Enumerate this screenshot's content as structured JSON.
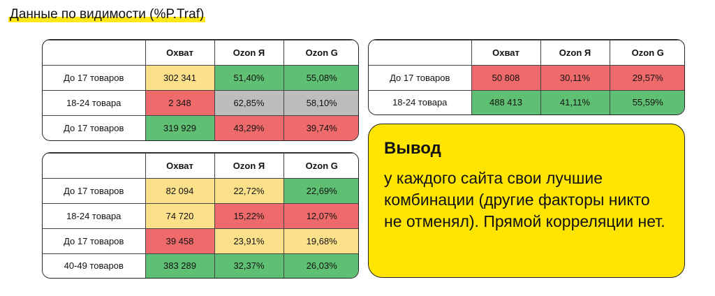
{
  "title": "Данные по видимости (%P.Traf)",
  "colors": {
    "green": "#5fbf72",
    "red": "#ef6b6b",
    "yellow": "#fce08a",
    "gray": "#bdbdbd",
    "accent_yellow": "#ffe500"
  },
  "tables": [
    {
      "headers": [
        "",
        "Охват",
        "Ozon Я",
        "Ozon G"
      ],
      "rows": [
        {
          "label": "До 17 товаров",
          "cells": [
            {
              "v": "302 341",
              "c": "yellow"
            },
            {
              "v": "51,40%",
              "c": "green"
            },
            {
              "v": "55,08%",
              "c": "green"
            }
          ]
        },
        {
          "label": "18-24 товара",
          "cells": [
            {
              "v": "2 348",
              "c": "red"
            },
            {
              "v": "62,85%",
              "c": "gray"
            },
            {
              "v": "58,10%",
              "c": "gray"
            }
          ]
        },
        {
          "label": "До 17 товаров",
          "cells": [
            {
              "v": "319 929",
              "c": "green"
            },
            {
              "v": "43,29%",
              "c": "red"
            },
            {
              "v": "39,74%",
              "c": "red"
            }
          ]
        }
      ]
    },
    {
      "headers": [
        "",
        "Охват",
        "Ozon Я",
        "Ozon G"
      ],
      "rows": [
        {
          "label": "До 17 товаров",
          "cells": [
            {
              "v": "50 808",
              "c": "red"
            },
            {
              "v": "30,11%",
              "c": "red"
            },
            {
              "v": "29,57%",
              "c": "red"
            }
          ]
        },
        {
          "label": "18-24 товара",
          "cells": [
            {
              "v": "488 413",
              "c": "green"
            },
            {
              "v": "41,11%",
              "c": "green"
            },
            {
              "v": "55,59%",
              "c": "green"
            }
          ]
        }
      ]
    },
    {
      "headers": [
        "",
        "Охват",
        "Ozon Я",
        "Ozon G"
      ],
      "rows": [
        {
          "label": "До 17 товаров",
          "cells": [
            {
              "v": "82 094",
              "c": "yellow"
            },
            {
              "v": "22,72%",
              "c": "yellow"
            },
            {
              "v": "22,69%",
              "c": "green"
            }
          ]
        },
        {
          "label": "18-24 товара",
          "cells": [
            {
              "v": "74 720",
              "c": "yellow"
            },
            {
              "v": "15,22%",
              "c": "red"
            },
            {
              "v": "12,07%",
              "c": "red"
            }
          ]
        },
        {
          "label": "До 17 товаров",
          "cells": [
            {
              "v": "39 458",
              "c": "red"
            },
            {
              "v": "23,91%",
              "c": "yellow"
            },
            {
              "v": "19,68%",
              "c": "yellow"
            }
          ]
        },
        {
          "label": "40-49 товаров",
          "cells": [
            {
              "v": "383 289",
              "c": "green"
            },
            {
              "v": "32,37%",
              "c": "green"
            },
            {
              "v": "26,03%",
              "c": "green"
            }
          ]
        }
      ]
    }
  ],
  "conclusion": {
    "heading": "Вывод",
    "text": "у каждого сайта свои лучшие комбинации (другие факторы никто не отменял). Прямой корреляции нет."
  }
}
